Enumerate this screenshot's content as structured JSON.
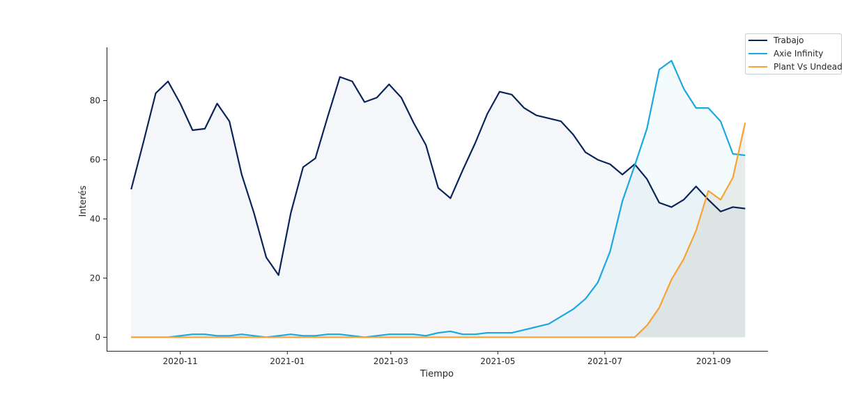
{
  "chart_data": {
    "type": "area",
    "title": "",
    "xlabel": "Tiempo",
    "ylabel": "Interés",
    "x_ticks": [
      "2020-11",
      "2021-01",
      "2021-03",
      "2021-05",
      "2021-07",
      "2021-09"
    ],
    "y_ticks": [
      0,
      20,
      40,
      60,
      80
    ],
    "xlim": [
      "2020-09-20",
      "2021-10-02"
    ],
    "ylim": [
      -4.6,
      98
    ],
    "x": [
      "2020-10-04",
      "2020-10-11",
      "2020-10-18",
      "2020-10-25",
      "2020-11-01",
      "2020-11-08",
      "2020-11-15",
      "2020-11-22",
      "2020-11-29",
      "2020-12-06",
      "2020-12-13",
      "2020-12-20",
      "2020-12-27",
      "2021-01-03",
      "2021-01-10",
      "2021-01-17",
      "2021-01-24",
      "2021-01-31",
      "2021-02-07",
      "2021-02-14",
      "2021-02-21",
      "2021-02-28",
      "2021-03-07",
      "2021-03-14",
      "2021-03-21",
      "2021-03-28",
      "2021-04-04",
      "2021-04-11",
      "2021-04-18",
      "2021-04-25",
      "2021-05-02",
      "2021-05-09",
      "2021-05-16",
      "2021-05-23",
      "2021-05-30",
      "2021-06-06",
      "2021-06-13",
      "2021-06-20",
      "2021-06-27",
      "2021-07-04",
      "2021-07-11",
      "2021-07-18",
      "2021-07-25",
      "2021-08-01",
      "2021-08-08",
      "2021-08-15",
      "2021-08-22",
      "2021-08-29",
      "2021-09-05",
      "2021-09-12",
      "2021-09-19"
    ],
    "series": [
      {
        "name": "Trabajo",
        "color": "#0a2359",
        "fill": "rgba(50,80,130,0.05)",
        "values": [
          50,
          66,
          82.5,
          86.5,
          79,
          70,
          70.5,
          79,
          73,
          55,
          42,
          27,
          21,
          42,
          57.5,
          60.5,
          74.5,
          88,
          86.5,
          79.5,
          81,
          85.5,
          81,
          72.5,
          65,
          50.5,
          47,
          56.5,
          65.5,
          75.5,
          83,
          82,
          77.5,
          75,
          74,
          73,
          68.5,
          62.5,
          60,
          58.5,
          55,
          58.5,
          53.5,
          45.5,
          44,
          46.5,
          51,
          46.5,
          42.5,
          44,
          43.5
        ]
      },
      {
        "name": "Axie Infinity",
        "color": "#1ba7e0",
        "fill": "rgba(27,167,224,0.05)",
        "values": [
          0,
          0,
          0,
          0,
          0.5,
          1,
          1,
          0.5,
          0.5,
          1,
          0.5,
          0,
          0.5,
          1,
          0.5,
          0.5,
          1,
          1,
          0.5,
          0,
          0.5,
          1,
          1,
          1,
          0.5,
          1.5,
          2,
          1,
          1,
          1.5,
          1.5,
          1.5,
          2.5,
          3.5,
          4.5,
          7,
          9.5,
          13,
          18.5,
          29,
          46,
          58,
          70.5,
          90.5,
          93.5,
          84,
          77.5,
          77.5,
          73,
          62,
          61.5
        ]
      },
      {
        "name": "Plant Vs Undead",
        "color": "#f7a233",
        "fill": "rgba(120,110,70,0.10)",
        "values": [
          0,
          0,
          0,
          0,
          0,
          0,
          0,
          0,
          0,
          0,
          0,
          0,
          0,
          0,
          0,
          0,
          0,
          0,
          0,
          0,
          0,
          0,
          0,
          0,
          0,
          0,
          0,
          0,
          0,
          0,
          0,
          0,
          0,
          0,
          0,
          0,
          0,
          0,
          0,
          0,
          0,
          0,
          4,
          10,
          19.5,
          26.5,
          36,
          49.5,
          46.5,
          54,
          72.5
        ]
      }
    ],
    "legend_position": "top-right",
    "grid": false
  }
}
